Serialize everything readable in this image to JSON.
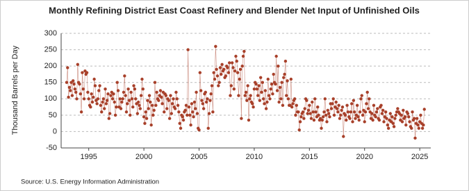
{
  "chart_data": {
    "type": "line",
    "title": "Monthly Refining District East Coast Refinery and Blender Net Input of Unfinished Oils",
    "y_label": "Thousand Barrels per Day",
    "source": "Source: U.S. Energy Information Administration",
    "color": "#a8402a",
    "grid": true,
    "markers": true,
    "xlim": [
      1992.5,
      2026
    ],
    "xticks": [
      1995,
      2000,
      2005,
      2010,
      2015,
      2020,
      2025
    ],
    "ylim": [
      -50,
      300
    ],
    "yticks": [
      -50,
      0,
      50,
      100,
      150,
      200,
      250,
      300
    ],
    "x": [
      "1993-01",
      "1993-02",
      "1993-03",
      "1993-04",
      "1993-05",
      "1993-06",
      "1993-07",
      "1993-08",
      "1993-09",
      "1993-10",
      "1993-11",
      "1993-12",
      "1994-01",
      "1994-02",
      "1994-03",
      "1994-04",
      "1994-05",
      "1994-06",
      "1994-07",
      "1994-08",
      "1994-09",
      "1994-10",
      "1994-11",
      "1994-12",
      "1995-01",
      "1995-02",
      "1995-03",
      "1995-04",
      "1995-05",
      "1995-06",
      "1995-07",
      "1995-08",
      "1995-09",
      "1995-10",
      "1995-11",
      "1995-12",
      "1996-01",
      "1996-02",
      "1996-03",
      "1996-04",
      "1996-05",
      "1996-06",
      "1996-07",
      "1996-08",
      "1996-09",
      "1996-10",
      "1996-11",
      "1996-12",
      "1997-01",
      "1997-02",
      "1997-03",
      "1997-04",
      "1997-05",
      "1997-06",
      "1997-07",
      "1997-08",
      "1997-09",
      "1997-10",
      "1997-11",
      "1997-12",
      "1998-01",
      "1998-02",
      "1998-03",
      "1998-04",
      "1998-05",
      "1998-06",
      "1998-07",
      "1998-08",
      "1998-09",
      "1998-10",
      "1998-11",
      "1998-12",
      "1999-01",
      "1999-02",
      "1999-03",
      "1999-04",
      "1999-05",
      "1999-06",
      "1999-07",
      "1999-08",
      "1999-09",
      "1999-10",
      "1999-11",
      "1999-12",
      "2000-01",
      "2000-02",
      "2000-03",
      "2000-04",
      "2000-05",
      "2000-06",
      "2000-07",
      "2000-08",
      "2000-09",
      "2000-10",
      "2000-11",
      "2000-12",
      "2001-01",
      "2001-02",
      "2001-03",
      "2001-04",
      "2001-05",
      "2001-06",
      "2001-07",
      "2001-08",
      "2001-09",
      "2001-10",
      "2001-11",
      "2001-12",
      "2002-01",
      "2002-02",
      "2002-03",
      "2002-04",
      "2002-05",
      "2002-06",
      "2002-07",
      "2002-08",
      "2002-09",
      "2002-10",
      "2002-11",
      "2002-12",
      "2003-01",
      "2003-02",
      "2003-03",
      "2003-04",
      "2003-05",
      "2003-06",
      "2003-07",
      "2003-08",
      "2003-09",
      "2003-10",
      "2003-11",
      "2003-12",
      "2004-01",
      "2004-02",
      "2004-03",
      "2004-04",
      "2004-05",
      "2004-06",
      "2004-07",
      "2004-08",
      "2004-09",
      "2004-10",
      "2004-11",
      "2004-12",
      "2005-01",
      "2005-02",
      "2005-03",
      "2005-04",
      "2005-05",
      "2005-06",
      "2005-07",
      "2005-08",
      "2005-09",
      "2005-10",
      "2005-11",
      "2005-12",
      "2006-01",
      "2006-02",
      "2006-03",
      "2006-04",
      "2006-05",
      "2006-06",
      "2006-07",
      "2006-08",
      "2006-09",
      "2006-10",
      "2006-11",
      "2006-12",
      "2007-01",
      "2007-02",
      "2007-03",
      "2007-04",
      "2007-05",
      "2007-06",
      "2007-07",
      "2007-08",
      "2007-09",
      "2007-10",
      "2007-11",
      "2007-12",
      "2008-01",
      "2008-02",
      "2008-03",
      "2008-04",
      "2008-05",
      "2008-06",
      "2008-07",
      "2008-08",
      "2008-09",
      "2008-10",
      "2008-11",
      "2008-12",
      "2009-01",
      "2009-02",
      "2009-03",
      "2009-04",
      "2009-05",
      "2009-06",
      "2009-07",
      "2009-08",
      "2009-09",
      "2009-10",
      "2009-11",
      "2009-12",
      "2010-01",
      "2010-02",
      "2010-03",
      "2010-04",
      "2010-05",
      "2010-06",
      "2010-07",
      "2010-08",
      "2010-09",
      "2010-10",
      "2010-11",
      "2010-12",
      "2011-01",
      "2011-02",
      "2011-03",
      "2011-04",
      "2011-05",
      "2011-06",
      "2011-07",
      "2011-08",
      "2011-09",
      "2011-10",
      "2011-11",
      "2011-12",
      "2012-01",
      "2012-02",
      "2012-03",
      "2012-04",
      "2012-05",
      "2012-06",
      "2012-07",
      "2012-08",
      "2012-09",
      "2012-10",
      "2012-11",
      "2012-12",
      "2013-01",
      "2013-02",
      "2013-03",
      "2013-04",
      "2013-05",
      "2013-06",
      "2013-07",
      "2013-08",
      "2013-09",
      "2013-10",
      "2013-11",
      "2013-12",
      "2014-01",
      "2014-02",
      "2014-03",
      "2014-04",
      "2014-05",
      "2014-06",
      "2014-07",
      "2014-08",
      "2014-09",
      "2014-10",
      "2014-11",
      "2014-12",
      "2015-01",
      "2015-02",
      "2015-03",
      "2015-04",
      "2015-05",
      "2015-06",
      "2015-07",
      "2015-08",
      "2015-09",
      "2015-10",
      "2015-11",
      "2015-12",
      "2016-01",
      "2016-02",
      "2016-03",
      "2016-04",
      "2016-05",
      "2016-06",
      "2016-07",
      "2016-08",
      "2016-09",
      "2016-10",
      "2016-11",
      "2016-12",
      "2017-01",
      "2017-02",
      "2017-03",
      "2017-04",
      "2017-05",
      "2017-06",
      "2017-07",
      "2017-08",
      "2017-09",
      "2017-10",
      "2017-11",
      "2017-12",
      "2018-01",
      "2018-02",
      "2018-03",
      "2018-04",
      "2018-05",
      "2018-06",
      "2018-07",
      "2018-08",
      "2018-09",
      "2018-10",
      "2018-11",
      "2018-12",
      "2019-01",
      "2019-02",
      "2019-03",
      "2019-04",
      "2019-05",
      "2019-06",
      "2019-07",
      "2019-08",
      "2019-09",
      "2019-10",
      "2019-11",
      "2019-12",
      "2020-01",
      "2020-02",
      "2020-03",
      "2020-04",
      "2020-05",
      "2020-06",
      "2020-07",
      "2020-08",
      "2020-09",
      "2020-10",
      "2020-11",
      "2020-12",
      "2021-01",
      "2021-02",
      "2021-03",
      "2021-04",
      "2021-05",
      "2021-06",
      "2021-07",
      "2021-08",
      "2021-09",
      "2021-10",
      "2021-11",
      "2021-12",
      "2022-01",
      "2022-02",
      "2022-03",
      "2022-04",
      "2022-05",
      "2022-06",
      "2022-07",
      "2022-08",
      "2022-09",
      "2022-10",
      "2022-11",
      "2022-12",
      "2023-01",
      "2023-02",
      "2023-03",
      "2023-04",
      "2023-05",
      "2023-06",
      "2023-07",
      "2023-08",
      "2023-09",
      "2023-10",
      "2023-11",
      "2023-12",
      "2024-01",
      "2024-02",
      "2024-03",
      "2024-04",
      "2024-05",
      "2024-06",
      "2024-07",
      "2024-08",
      "2024-09",
      "2024-10",
      "2024-11",
      "2024-12",
      "2025-01",
      "2025-02",
      "2025-03",
      "2025-04",
      "2025-05",
      "2025-06"
    ],
    "values": [
      150,
      195,
      105,
      135,
      125,
      150,
      110,
      155,
      145,
      130,
      120,
      100,
      205,
      150,
      145,
      115,
      60,
      180,
      130,
      100,
      185,
      175,
      180,
      120,
      100,
      80,
      75,
      115,
      90,
      105,
      160,
      140,
      95,
      85,
      100,
      125,
      140,
      80,
      60,
      90,
      100,
      70,
      130,
      85,
      95,
      115,
      40,
      55,
      110,
      120,
      100,
      115,
      90,
      50,
      75,
      150,
      125,
      75,
      100,
      70,
      90,
      100,
      120,
      170,
      110,
      60,
      85,
      130,
      95,
      50,
      120,
      100,
      75,
      140,
      130,
      100,
      85,
      55,
      90,
      80,
      70,
      110,
      160,
      130,
      45,
      25,
      60,
      40,
      95,
      70,
      110,
      90,
      20,
      80,
      50,
      65,
      150,
      80,
      120,
      100,
      95,
      110,
      125,
      105,
      85,
      120,
      60,
      115,
      110,
      70,
      100,
      95,
      40,
      110,
      55,
      85,
      100,
      75,
      70,
      120,
      100,
      80,
      60,
      25,
      10,
      50,
      45,
      35,
      60,
      65,
      80,
      50,
      250,
      75,
      50,
      20,
      85,
      60,
      45,
      90,
      70,
      120,
      55,
      10,
      5,
      180,
      125,
      95,
      85,
      70,
      115,
      120,
      90,
      100,
      10,
      55,
      95,
      115,
      140,
      60,
      180,
      160,
      260,
      190,
      170,
      140,
      150,
      195,
      175,
      205,
      185,
      190,
      165,
      170,
      200,
      195,
      180,
      210,
      110,
      140,
      210,
      195,
      130,
      185,
      230,
      215,
      180,
      110,
      160,
      190,
      40,
      200,
      230,
      245,
      110,
      120,
      95,
      140,
      35,
      100,
      110,
      90,
      85,
      75,
      130,
      150,
      145,
      130,
      110,
      140,
      95,
      165,
      120,
      150,
      100,
      85,
      125,
      70,
      90,
      160,
      110,
      100,
      130,
      145,
      115,
      175,
      150,
      145,
      230,
      125,
      200,
      90,
      135,
      100,
      150,
      80,
      165,
      175,
      215,
      110,
      155,
      100,
      80,
      80,
      160,
      75,
      85,
      95,
      100,
      50,
      80,
      60,
      60,
      5,
      30,
      45,
      55,
      60,
      40,
      70,
      100,
      95,
      55,
      65,
      80,
      55,
      40,
      90,
      60,
      35,
      100,
      60,
      45,
      75,
      50,
      35,
      40,
      10,
      35,
      45,
      60,
      100,
      50,
      30,
      65,
      55,
      45,
      85,
      70,
      85,
      100,
      50,
      75,
      90,
      70,
      60,
      80,
      40,
      50,
      65,
      75,
      -15,
      55,
      50,
      35,
      80,
      60,
      45,
      40,
      60,
      85,
      30,
      95,
      60,
      40,
      50,
      80,
      45,
      35,
      60,
      100,
      110,
      50,
      65,
      30,
      60,
      85,
      120,
      70,
      100,
      60,
      40,
      55,
      35,
      80,
      50,
      45,
      60,
      70,
      40,
      35,
      75,
      80,
      55,
      65,
      30,
      45,
      60,
      40,
      20,
      10,
      35,
      55,
      30,
      45,
      25,
      15,
      40,
      50,
      60,
      70,
      60,
      55,
      35,
      50,
      30,
      65,
      40,
      45,
      20,
      60,
      55,
      45,
      30,
      15,
      10,
      60,
      35,
      40,
      -20,
      25,
      40,
      20,
      10,
      30,
      50,
      25,
      10,
      20,
      68
    ]
  }
}
